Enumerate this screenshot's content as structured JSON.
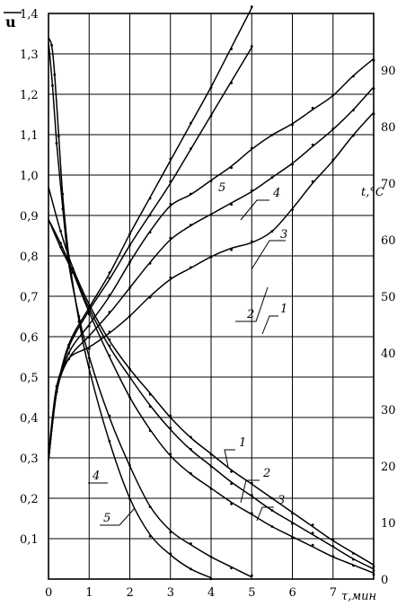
{
  "chart_data": {
    "type": "line",
    "xlabel": "τ,мин",
    "ylabel_left": "u",
    "ylabel_right": "t,°C",
    "xlim": [
      0,
      8
    ],
    "ylim_left": [
      0,
      1.4
    ],
    "ylim_right": [
      0,
      100
    ],
    "grid": true,
    "x_ticks": [
      "0",
      "1",
      "2",
      "3",
      "4",
      "5",
      "6",
      "7"
    ],
    "y_left_ticks": [
      "0,1",
      "0,2",
      "0,3",
      "0,4",
      "0,5",
      "0,6",
      "0,7",
      "0,8",
      "0,9",
      "1,0",
      "1,1",
      "1,2",
      "1,3",
      "1,4"
    ],
    "y_right_ticks": [
      "0",
      "10",
      "20",
      "30",
      "40",
      "50",
      "60",
      "70",
      "80",
      "90"
    ],
    "series_moisture": [
      {
        "name": "1",
        "x": [
          0,
          0.3,
          0.6,
          1,
          1.5,
          2,
          2.5,
          3,
          3.5,
          4,
          4.5,
          5,
          5.5,
          6,
          6.5,
          7,
          7.5,
          8
        ],
        "y": [
          0.97,
          0.86,
          0.77,
          0.68,
          0.59,
          0.52,
          0.46,
          0.4,
          0.35,
          0.31,
          0.27,
          0.235,
          0.2,
          0.165,
          0.13,
          0.095,
          0.065,
          0.035
        ]
      },
      {
        "name": "2",
        "x": [
          0,
          0.3,
          0.6,
          1,
          1.5,
          2,
          2.5,
          3,
          3.5,
          4,
          4.5,
          5,
          5.5,
          6,
          6.5,
          7,
          7.5,
          8
        ],
        "y": [
          0.89,
          0.82,
          0.76,
          0.67,
          0.575,
          0.5,
          0.43,
          0.37,
          0.32,
          0.28,
          0.24,
          0.205,
          0.17,
          0.14,
          0.11,
          0.08,
          0.05,
          0.025
        ]
      },
      {
        "name": "3",
        "x": [
          0,
          0.3,
          0.6,
          1,
          1.5,
          2,
          2.5,
          3,
          3.5,
          4,
          4.5,
          5,
          5.5,
          6,
          6.5,
          7,
          7.5,
          8
        ],
        "y": [
          0.89,
          0.83,
          0.76,
          0.66,
          0.55,
          0.45,
          0.37,
          0.305,
          0.26,
          0.225,
          0.19,
          0.16,
          0.13,
          0.105,
          0.08,
          0.055,
          0.035,
          0.015
        ]
      },
      {
        "name": "4",
        "x": [
          0,
          0.1,
          0.2,
          0.35,
          0.5,
          0.75,
          1,
          1.5,
          2,
          2.5,
          3,
          3.5,
          4,
          4.5,
          5
        ],
        "y": [
          1.33,
          1.22,
          1.08,
          0.92,
          0.78,
          0.65,
          0.55,
          0.4,
          0.28,
          0.18,
          0.12,
          0.085,
          0.055,
          0.03,
          0.005
        ]
      },
      {
        "name": "5",
        "x": [
          0,
          0.08,
          0.15,
          0.25,
          0.35,
          0.5,
          0.75,
          1,
          1.5,
          2,
          2.5,
          3,
          3.5,
          4
        ],
        "y": [
          1.34,
          1.32,
          1.25,
          1.1,
          0.95,
          0.8,
          0.64,
          0.52,
          0.34,
          0.2,
          0.11,
          0.06,
          0.025,
          0.003
        ]
      }
    ],
    "series_temperature": [
      {
        "name": "1",
        "x": [
          0,
          0.2,
          0.5,
          1,
          1.5,
          2,
          2.5,
          3,
          3.5,
          4,
          4.5,
          5,
          5.5,
          6,
          6.5,
          7,
          7.5,
          8
        ],
        "y": [
          22,
          34,
          39,
          41,
          43.5,
          46.5,
          50,
          53,
          55,
          57,
          58.5,
          59.5,
          61.5,
          65.5,
          70,
          74,
          78.5,
          82.5
        ]
      },
      {
        "name": "2",
        "x": [
          0,
          0.2,
          0.5,
          1,
          1.5,
          2,
          2.5,
          3,
          3.5,
          4,
          4.5,
          5,
          5.5,
          6,
          6.5,
          7,
          7.5,
          8
        ],
        "y": [
          21,
          33,
          39,
          43,
          47,
          51.5,
          56,
          60,
          62.5,
          64.5,
          66.5,
          68.5,
          71,
          73.5,
          76.5,
          79.5,
          83,
          87
        ]
      },
      {
        "name": "3",
        "x": [
          0,
          0.2,
          0.5,
          1,
          1.5,
          2,
          2.5,
          3,
          3.5,
          4,
          4.5,
          5,
          5.5,
          6,
          6.5,
          7,
          7.5,
          8
        ],
        "y": [
          21,
          33,
          40,
          45,
          50,
          56,
          61.5,
          66,
          68,
          70.5,
          73,
          76,
          78.5,
          80.5,
          83,
          85.5,
          89,
          92
        ]
      },
      {
        "name": "4",
        "x": [
          0,
          0.2,
          0.5,
          1,
          1.5,
          2,
          2.5,
          3,
          3.5,
          4,
          4.5,
          5
        ],
        "y": [
          21,
          33,
          41,
          47.5,
          53,
          59,
          64.5,
          70,
          76,
          82,
          88,
          94
        ]
      },
      {
        "name": "5",
        "x": [
          0,
          0.2,
          0.5,
          1,
          1.5,
          2,
          2.5,
          3,
          3.5,
          4,
          4.5,
          5
        ],
        "y": [
          21,
          33,
          41.5,
          48,
          54,
          61,
          67.5,
          74,
          80.5,
          87,
          94,
          101
        ]
      }
    ]
  }
}
